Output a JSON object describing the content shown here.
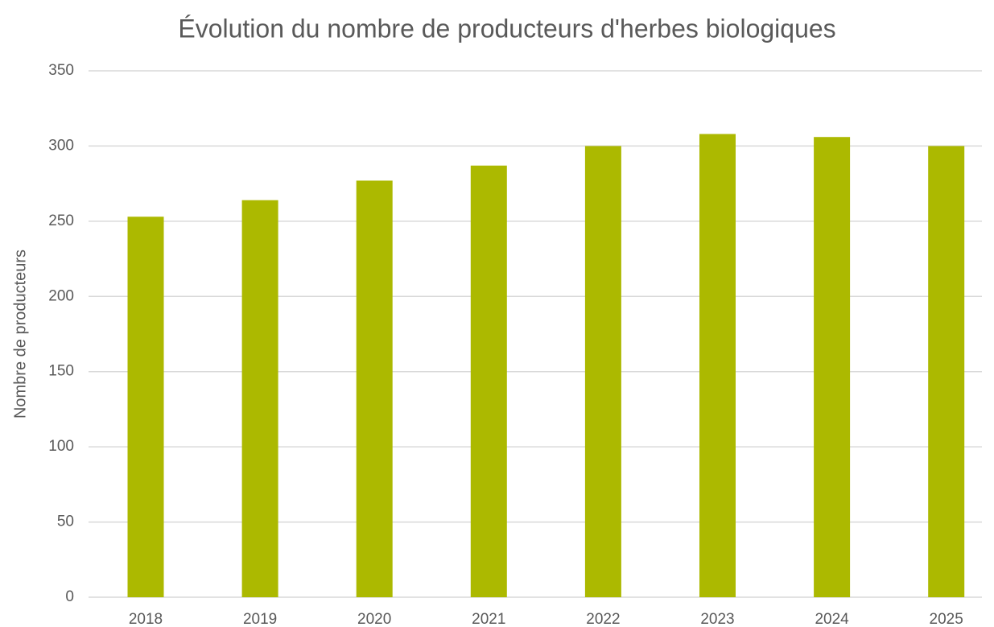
{
  "chart_data": {
    "type": "bar",
    "title": "Évolution du nombre de producteurs d'herbes biologiques",
    "y_label": "Nombre de producteurs",
    "categories": [
      "2018",
      "2019",
      "2020",
      "2021",
      "2022",
      "2023",
      "2024",
      "2025"
    ],
    "values": [
      253,
      264,
      277,
      287,
      300,
      308,
      306,
      300
    ],
    "color": "#acb900",
    "ylim": [
      0,
      350
    ],
    "yticks": [
      0,
      50,
      100,
      150,
      200,
      250,
      300,
      350
    ],
    "grid": true
  }
}
